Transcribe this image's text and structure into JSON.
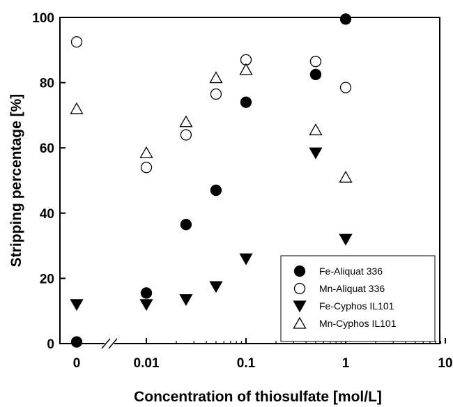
{
  "chart_data": {
    "type": "scatter",
    "title": "",
    "xlabel": "Concentration of thiosulfate [mol/L]",
    "ylabel": "Stripping percentage [%]",
    "x_scale": "log",
    "x_break": "axis break between 0 and 0.01",
    "xlim": [
      0.005,
      10
    ],
    "ylim": [
      0,
      100
    ],
    "x_ticks": [
      {
        "value": 0,
        "label": "0"
      },
      {
        "value": 0.01,
        "label": "0.01"
      },
      {
        "value": 0.1,
        "label": "0.1"
      },
      {
        "value": 1,
        "label": "1"
      },
      {
        "value": 10,
        "label": "10"
      }
    ],
    "y_ticks": [
      {
        "value": 0,
        "label": "0"
      },
      {
        "value": 20,
        "label": "20"
      },
      {
        "value": 40,
        "label": "40"
      },
      {
        "value": 60,
        "label": "60"
      },
      {
        "value": 80,
        "label": "80"
      },
      {
        "value": 100,
        "label": "100"
      }
    ],
    "legend_position": "bottom-right",
    "grid": false,
    "series": [
      {
        "name": "Fe-Aliquat 336",
        "marker": "filled-circle",
        "x": [
          0,
          0.01,
          0.025,
          0.05,
          0.1,
          0.5,
          1
        ],
        "y": [
          0.5,
          15.5,
          36.5,
          47,
          74,
          82.5,
          99.5
        ]
      },
      {
        "name": "Mn-Aliquat 336",
        "marker": "open-circle",
        "x": [
          0,
          0.01,
          0.025,
          0.05,
          0.1,
          0.5,
          1
        ],
        "y": [
          92.5,
          54,
          64,
          76.5,
          87,
          86.5,
          78.5
        ]
      },
      {
        "name": "Fe-Cyphos IL101",
        "marker": "filled-triangle-down",
        "x": [
          0,
          0.01,
          0.025,
          0.05,
          0.1,
          0.5,
          1
        ],
        "y": [
          12,
          12,
          13.5,
          17.5,
          26,
          58.5,
          32
        ]
      },
      {
        "name": "Mn-Cyphos IL101",
        "marker": "open-triangle-up",
        "x": [
          0,
          0.01,
          0.025,
          0.05,
          0.1,
          0.5,
          1
        ],
        "y": [
          72,
          58.5,
          68,
          81.5,
          84,
          65.5,
          51
        ]
      }
    ]
  }
}
